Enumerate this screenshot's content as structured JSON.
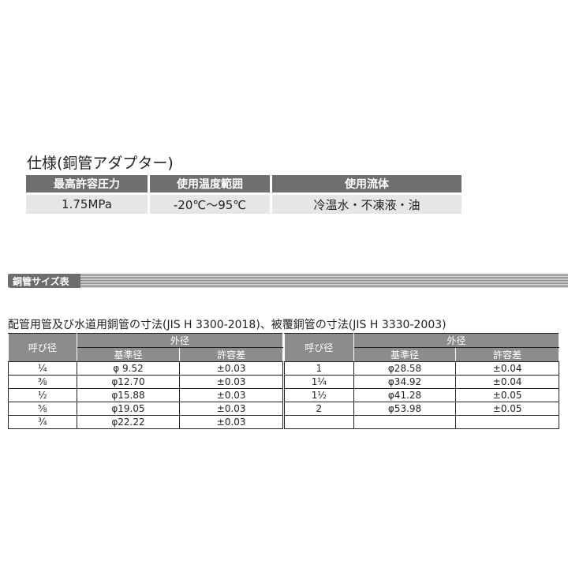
{
  "spec": {
    "title": "仕様(銅管アダプター)",
    "headers": [
      "最高許容圧力",
      "使用温度範囲",
      "使用流体"
    ],
    "values": [
      "1.75MPa",
      "-20℃～95℃",
      "冷温水・不凍液・油"
    ]
  },
  "section": {
    "label": "銅管サイズ表"
  },
  "table_title": "配管用管及び水道用銅管の寸法(JIS H 3300-2018)、被覆銅管の寸法(JIS H 3330-2003)",
  "table_headers": {
    "nominal": "呼び径",
    "outer": "外径",
    "standard": "基準径",
    "tolerance": "許容差"
  },
  "left_rows": [
    {
      "nominal": "¼",
      "diameter": "φ  9.52",
      "tolerance": "±0.03"
    },
    {
      "nominal": "⅜",
      "diameter": "φ12.70",
      "tolerance": "±0.03"
    },
    {
      "nominal": "½",
      "diameter": "φ15.88",
      "tolerance": "±0.03"
    },
    {
      "nominal": "⅝",
      "diameter": "φ19.05",
      "tolerance": "±0.03"
    },
    {
      "nominal": "¾",
      "diameter": "φ22.22",
      "tolerance": "±0.03"
    }
  ],
  "right_rows": [
    {
      "nominal": "1",
      "diameter": "φ28.58",
      "tolerance": "±0.04"
    },
    {
      "nominal": "1¼",
      "diameter": "φ34.92",
      "tolerance": "±0.04"
    },
    {
      "nominal": "1½",
      "diameter": "φ41.28",
      "tolerance": "±0.05"
    },
    {
      "nominal": "2",
      "diameter": "φ53.98",
      "tolerance": "±0.05"
    },
    {
      "nominal": "",
      "diameter": "",
      "tolerance": ""
    }
  ]
}
